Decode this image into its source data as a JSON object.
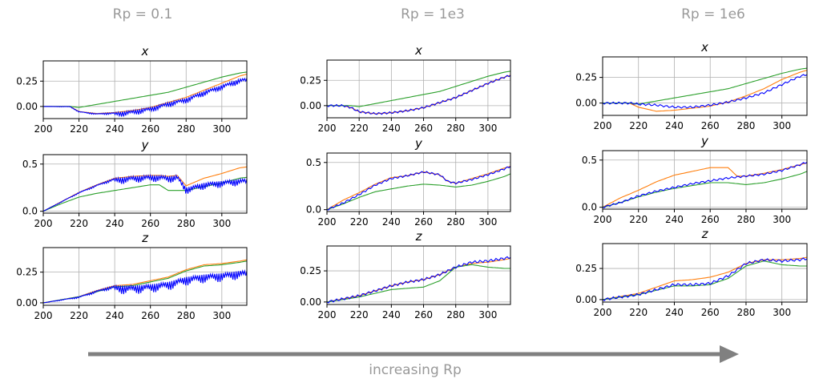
{
  "column_titles": [
    "Rp = 0.1",
    "Rp = 1e3",
    "Rp = 1e6"
  ],
  "arrow_label": "increasing Rp",
  "colors": {
    "series_a": "#ff7f0e",
    "series_b": "#2ca02c",
    "series_c": "#0000ff",
    "arrow": "#808080",
    "grid": "#b0b0b0",
    "title_text": "#999999"
  },
  "chart_data": [
    {
      "type": "line",
      "col": 0,
      "title": "x",
      "xlim": [
        200,
        314
      ],
      "ylim": [
        -0.12,
        0.45
      ],
      "xticks": [
        200,
        220,
        240,
        260,
        280,
        300
      ],
      "yticks": [
        0,
        0.25
      ],
      "ytick_labels": [
        "0.00",
        "0.25"
      ],
      "grid": true,
      "series": [
        {
          "color": "orange",
          "x": [
            200,
            215,
            220,
            230,
            240,
            250,
            260,
            270,
            280,
            290,
            300,
            310,
            314
          ],
          "y": [
            0,
            0,
            -0.05,
            -0.07,
            -0.06,
            -0.04,
            -0.01,
            0.04,
            0.09,
            0.16,
            0.23,
            0.3,
            0.32
          ],
          "noise": 0
        },
        {
          "color": "green",
          "x": [
            200,
            215,
            220,
            230,
            240,
            250,
            260,
            270,
            280,
            290,
            300,
            310,
            314
          ],
          "y": [
            0,
            0,
            -0.01,
            0.02,
            0.05,
            0.08,
            0.11,
            0.14,
            0.19,
            0.24,
            0.29,
            0.33,
            0.34
          ],
          "noise": 0
        },
        {
          "color": "blue",
          "x": [
            200,
            215,
            220,
            230,
            240,
            250,
            260,
            270,
            280,
            290,
            300,
            310,
            314
          ],
          "y": [
            0,
            0,
            -0.05,
            -0.07,
            -0.06,
            -0.04,
            -0.01,
            0.04,
            0.08,
            0.15,
            0.21,
            0.27,
            0.28
          ],
          "noise": 0.05
        }
      ]
    },
    {
      "type": "line",
      "col": 0,
      "title": "y",
      "xlim": [
        200,
        314
      ],
      "ylim": [
        -0.02,
        0.6
      ],
      "xticks": [
        200,
        220,
        240,
        260,
        280,
        300
      ],
      "yticks": [
        0,
        0.5
      ],
      "ytick_labels": [
        "0.0",
        "0.5"
      ],
      "grid": true,
      "series": [
        {
          "color": "orange",
          "x": [
            200,
            210,
            220,
            230,
            240,
            250,
            260,
            265,
            270,
            275,
            280,
            290,
            300,
            310,
            314
          ],
          "y": [
            0,
            0.1,
            0.2,
            0.28,
            0.35,
            0.37,
            0.38,
            0.38,
            0.37,
            0.38,
            0.27,
            0.35,
            0.4,
            0.46,
            0.47
          ],
          "noise": 0
        },
        {
          "color": "green",
          "x": [
            200,
            210,
            220,
            230,
            240,
            250,
            260,
            265,
            270,
            280,
            290,
            300,
            310,
            314
          ],
          "y": [
            0,
            0.08,
            0.15,
            0.19,
            0.22,
            0.25,
            0.28,
            0.28,
            0.22,
            0.22,
            0.26,
            0.3,
            0.35,
            0.36
          ],
          "noise": 0
        },
        {
          "color": "blue",
          "x": [
            200,
            210,
            220,
            230,
            240,
            250,
            260,
            265,
            270,
            275,
            280,
            290,
            300,
            310,
            314
          ],
          "y": [
            0,
            0.1,
            0.2,
            0.28,
            0.35,
            0.37,
            0.38,
            0.38,
            0.37,
            0.38,
            0.25,
            0.3,
            0.32,
            0.34,
            0.34
          ],
          "noise": 0.07
        }
      ]
    },
    {
      "type": "line",
      "col": 0,
      "title": "z",
      "xlim": [
        200,
        314
      ],
      "ylim": [
        -0.02,
        0.45
      ],
      "xticks": [
        200,
        220,
        240,
        260,
        280,
        300
      ],
      "yticks": [
        0,
        0.25
      ],
      "ytick_labels": [
        "0.00",
        "0.25"
      ],
      "grid": true,
      "series": [
        {
          "color": "orange",
          "x": [
            200,
            220,
            230,
            240,
            250,
            260,
            270,
            280,
            290,
            300,
            310,
            314
          ],
          "y": [
            0,
            0.05,
            0.1,
            0.14,
            0.15,
            0.18,
            0.21,
            0.27,
            0.31,
            0.32,
            0.34,
            0.35
          ],
          "noise": 0
        },
        {
          "color": "green",
          "x": [
            200,
            220,
            230,
            240,
            250,
            260,
            270,
            280,
            290,
            300,
            310,
            314
          ],
          "y": [
            0,
            0.05,
            0.09,
            0.13,
            0.14,
            0.17,
            0.2,
            0.26,
            0.3,
            0.31,
            0.33,
            0.34
          ],
          "noise": 0
        },
        {
          "color": "blue",
          "x": [
            200,
            220,
            230,
            240,
            250,
            260,
            270,
            280,
            290,
            300,
            310,
            314
          ],
          "y": [
            0,
            0.05,
            0.1,
            0.14,
            0.14,
            0.15,
            0.17,
            0.21,
            0.23,
            0.24,
            0.26,
            0.26
          ],
          "noise": 0.07
        }
      ]
    },
    {
      "type": "line",
      "col": 1,
      "title": "x",
      "xlim": [
        200,
        314
      ],
      "ylim": [
        -0.12,
        0.45
      ],
      "xticks": [
        200,
        220,
        240,
        260,
        280,
        300
      ],
      "yticks": [
        0,
        0.25
      ],
      "ytick_labels": [
        "0.00",
        "0.25"
      ],
      "grid": true,
      "series": [
        {
          "color": "orange",
          "x": [
            200,
            210,
            215,
            220,
            230,
            240,
            250,
            260,
            270,
            280,
            290,
            300,
            310,
            314
          ],
          "y": [
            0,
            0,
            -0.02,
            -0.06,
            -0.08,
            -0.07,
            -0.05,
            -0.02,
            0.03,
            0.08,
            0.15,
            0.22,
            0.28,
            0.3
          ],
          "noise": 0
        },
        {
          "color": "green",
          "x": [
            200,
            215,
            220,
            230,
            240,
            250,
            260,
            270,
            280,
            290,
            300,
            310,
            314
          ],
          "y": [
            0,
            0,
            -0.01,
            0.02,
            0.05,
            0.08,
            0.11,
            0.14,
            0.19,
            0.24,
            0.29,
            0.33,
            0.34
          ],
          "noise": 0
        },
        {
          "color": "blue",
          "x": [
            200,
            210,
            215,
            220,
            230,
            240,
            250,
            260,
            270,
            280,
            290,
            300,
            310,
            314
          ],
          "y": [
            0,
            0,
            -0.02,
            -0.06,
            -0.08,
            -0.07,
            -0.05,
            -0.02,
            0.03,
            0.08,
            0.15,
            0.22,
            0.28,
            0.3
          ],
          "noise": 0.01
        }
      ]
    },
    {
      "type": "line",
      "col": 1,
      "title": "y",
      "xlim": [
        200,
        314
      ],
      "ylim": [
        -0.02,
        0.6
      ],
      "xticks": [
        200,
        220,
        240,
        260,
        280,
        300
      ],
      "yticks": [
        0,
        0.5
      ],
      "ytick_labels": [
        "0.0",
        "0.5"
      ],
      "grid": true,
      "series": [
        {
          "color": "orange",
          "x": [
            200,
            210,
            220,
            230,
            240,
            250,
            260,
            270,
            275,
            280,
            290,
            300,
            310,
            314
          ],
          "y": [
            0,
            0.1,
            0.18,
            0.27,
            0.34,
            0.36,
            0.4,
            0.37,
            0.3,
            0.28,
            0.33,
            0.38,
            0.44,
            0.46
          ],
          "noise": 0
        },
        {
          "color": "green",
          "x": [
            200,
            210,
            220,
            230,
            240,
            250,
            260,
            270,
            280,
            290,
            300,
            310,
            314
          ],
          "y": [
            0,
            0.06,
            0.13,
            0.19,
            0.22,
            0.25,
            0.27,
            0.26,
            0.24,
            0.26,
            0.3,
            0.35,
            0.38
          ],
          "noise": 0
        },
        {
          "color": "blue",
          "x": [
            200,
            210,
            220,
            230,
            240,
            250,
            260,
            270,
            275,
            280,
            290,
            300,
            310,
            314
          ],
          "y": [
            0,
            0.07,
            0.16,
            0.26,
            0.33,
            0.36,
            0.4,
            0.37,
            0.3,
            0.28,
            0.32,
            0.37,
            0.43,
            0.46
          ],
          "noise": 0.01
        }
      ]
    },
    {
      "type": "line",
      "col": 1,
      "title": "z",
      "xlim": [
        200,
        314
      ],
      "ylim": [
        -0.02,
        0.45
      ],
      "xticks": [
        200,
        220,
        240,
        260,
        280,
        300
      ],
      "yticks": [
        0,
        0.25
      ],
      "ytick_labels": [
        "0.00",
        "0.25"
      ],
      "grid": true,
      "series": [
        {
          "color": "orange",
          "x": [
            200,
            220,
            240,
            250,
            260,
            270,
            280,
            290,
            300,
            310,
            314
          ],
          "y": [
            0,
            0.05,
            0.13,
            0.16,
            0.18,
            0.22,
            0.28,
            0.31,
            0.32,
            0.34,
            0.35
          ],
          "noise": 0
        },
        {
          "color": "green",
          "x": [
            200,
            220,
            240,
            250,
            260,
            270,
            280,
            290,
            300,
            310,
            314
          ],
          "y": [
            0,
            0.04,
            0.1,
            0.11,
            0.12,
            0.17,
            0.28,
            0.3,
            0.28,
            0.27,
            0.27
          ],
          "noise": 0
        },
        {
          "color": "blue",
          "x": [
            200,
            220,
            240,
            250,
            260,
            270,
            280,
            290,
            300,
            310,
            314
          ],
          "y": [
            0,
            0.05,
            0.13,
            0.16,
            0.18,
            0.22,
            0.28,
            0.32,
            0.33,
            0.35,
            0.36
          ],
          "noise": 0.01
        }
      ]
    },
    {
      "type": "line",
      "col": 2,
      "title": "x",
      "xlim": [
        200,
        314
      ],
      "ylim": [
        -0.12,
        0.45
      ],
      "xticks": [
        200,
        220,
        240,
        260,
        280,
        300
      ],
      "yticks": [
        0,
        0.25
      ],
      "ytick_labels": [
        "0.00",
        "0.25"
      ],
      "grid": true,
      "series": [
        {
          "color": "orange",
          "x": [
            200,
            215,
            220,
            230,
            240,
            250,
            260,
            270,
            280,
            290,
            300,
            310,
            314
          ],
          "y": [
            0,
            0,
            -0.04,
            -0.08,
            -0.07,
            -0.05,
            -0.03,
            0.01,
            0.07,
            0.14,
            0.23,
            0.3,
            0.32
          ],
          "noise": 0
        },
        {
          "color": "green",
          "x": [
            200,
            215,
            220,
            230,
            240,
            250,
            260,
            270,
            280,
            290,
            300,
            310,
            314
          ],
          "y": [
            0,
            0,
            -0.01,
            0.02,
            0.05,
            0.08,
            0.11,
            0.14,
            0.19,
            0.24,
            0.29,
            0.33,
            0.34
          ],
          "noise": 0
        },
        {
          "color": "blue",
          "x": [
            200,
            215,
            220,
            230,
            240,
            250,
            260,
            270,
            280,
            290,
            300,
            310,
            314
          ],
          "y": [
            0,
            0,
            -0.01,
            -0.02,
            -0.04,
            -0.04,
            -0.02,
            0.01,
            0.05,
            0.1,
            0.18,
            0.26,
            0.28
          ],
          "noise": 0.01
        }
      ]
    },
    {
      "type": "line",
      "col": 2,
      "title": "y",
      "xlim": [
        200,
        314
      ],
      "ylim": [
        -0.02,
        0.6
      ],
      "xticks": [
        200,
        220,
        240,
        260,
        280,
        300
      ],
      "yticks": [
        0,
        0.5
      ],
      "ytick_labels": [
        "0.0",
        "0.5"
      ],
      "grid": true,
      "series": [
        {
          "color": "orange",
          "x": [
            200,
            210,
            220,
            230,
            240,
            250,
            260,
            270,
            275,
            280,
            290,
            300,
            310,
            314
          ],
          "y": [
            0,
            0.1,
            0.18,
            0.27,
            0.34,
            0.38,
            0.42,
            0.42,
            0.33,
            0.33,
            0.36,
            0.4,
            0.45,
            0.47
          ],
          "noise": 0
        },
        {
          "color": "green",
          "x": [
            200,
            210,
            220,
            230,
            240,
            250,
            260,
            270,
            280,
            290,
            300,
            310,
            314
          ],
          "y": [
            0,
            0.05,
            0.11,
            0.16,
            0.2,
            0.23,
            0.26,
            0.26,
            0.24,
            0.26,
            0.3,
            0.35,
            0.38
          ],
          "noise": 0
        },
        {
          "color": "blue",
          "x": [
            200,
            210,
            220,
            230,
            240,
            250,
            260,
            270,
            280,
            290,
            300,
            310,
            314
          ],
          "y": [
            0,
            0.05,
            0.12,
            0.17,
            0.21,
            0.25,
            0.28,
            0.31,
            0.33,
            0.35,
            0.39,
            0.45,
            0.48
          ],
          "noise": 0.01
        }
      ]
    },
    {
      "type": "line",
      "col": 2,
      "title": "z",
      "xlim": [
        200,
        314
      ],
      "ylim": [
        -0.02,
        0.45
      ],
      "xticks": [
        200,
        220,
        240,
        260,
        280,
        300
      ],
      "yticks": [
        0,
        0.25
      ],
      "ytick_labels": [
        "0.00",
        "0.25"
      ],
      "grid": true,
      "series": [
        {
          "color": "orange",
          "x": [
            200,
            220,
            240,
            250,
            260,
            270,
            280,
            290,
            300,
            310,
            314
          ],
          "y": [
            0,
            0.05,
            0.15,
            0.16,
            0.18,
            0.22,
            0.29,
            0.32,
            0.32,
            0.33,
            0.34
          ],
          "noise": 0
        },
        {
          "color": "green",
          "x": [
            200,
            220,
            240,
            250,
            260,
            270,
            280,
            290,
            300,
            310,
            314
          ],
          "y": [
            0,
            0.04,
            0.11,
            0.11,
            0.12,
            0.17,
            0.27,
            0.31,
            0.28,
            0.27,
            0.27
          ],
          "noise": 0
        },
        {
          "color": "blue",
          "x": [
            200,
            220,
            240,
            250,
            260,
            270,
            280,
            290,
            300,
            310,
            314
          ],
          "y": [
            0,
            0.04,
            0.12,
            0.12,
            0.13,
            0.19,
            0.29,
            0.32,
            0.31,
            0.32,
            0.33
          ],
          "noise": 0.01
        }
      ]
    }
  ]
}
